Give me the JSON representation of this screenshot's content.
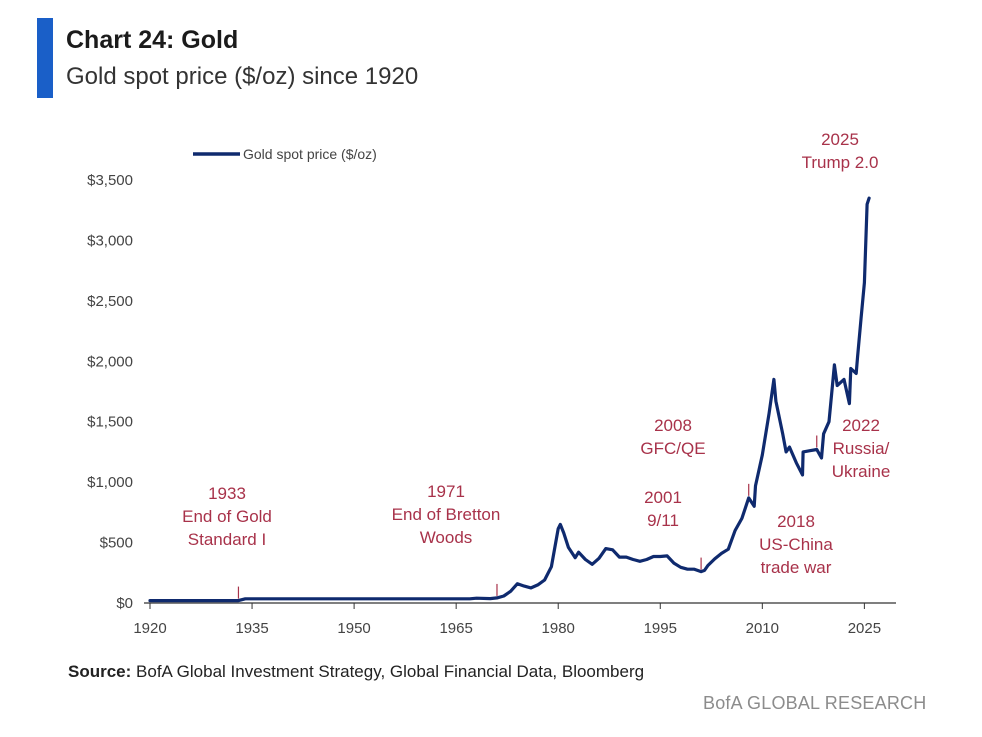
{
  "header": {
    "title": "Chart 24: Gold",
    "subtitle": "Gold spot price ($/oz) since 1920"
  },
  "footer": {
    "source_label": "Source:",
    "source_text": " BofA Global Investment Strategy, Global Financial Data, Bloomberg",
    "brand": "BofA GLOBAL RESEARCH"
  },
  "colors": {
    "accent": "#1a5fc8",
    "line": "#0f2a6e",
    "annotation": "#a8324a"
  },
  "chart_data": {
    "type": "line",
    "title": "Chart 24: Gold",
    "subtitle": "Gold spot price ($/oz) since 1920",
    "legend": {
      "position": "top-left",
      "entries": [
        "Gold spot price ($/oz)"
      ]
    },
    "xlim": [
      1920,
      2032
    ],
    "ylim": [
      0,
      3500
    ],
    "x_ticks": [
      1920,
      1935,
      1950,
      1965,
      1980,
      1995,
      2010,
      2025
    ],
    "y_ticks": [
      {
        "value": 0,
        "label": "$0"
      },
      {
        "value": 500,
        "label": "$500"
      },
      {
        "value": 1000,
        "label": "$1,000"
      },
      {
        "value": 1500,
        "label": "$1,500"
      },
      {
        "value": 2000,
        "label": "$2,000"
      },
      {
        "value": 2500,
        "label": "$2,500"
      },
      {
        "value": 3000,
        "label": "$3,000"
      },
      {
        "value": 3500,
        "label": "$3,500"
      }
    ],
    "series": [
      {
        "name": "Gold spot price ($/oz)",
        "x": [
          1920,
          1933,
          1934,
          1950,
          1967,
          1968,
          1970,
          1971,
          1972,
          1973,
          1974,
          1975,
          1976,
          1977,
          1978,
          1979,
          1980,
          1980.3,
          1980.8,
          1981.5,
          1982.5,
          1983,
          1984,
          1985,
          1986,
          1987,
          1988,
          1989,
          1990,
          1991,
          1992,
          1993,
          1994,
          1995,
          1996,
          1997,
          1998,
          1999,
          2000,
          2001,
          2001.5,
          2002,
          2003,
          2004,
          2005,
          2006,
          2007,
          2008,
          2008.8,
          2009,
          2010,
          2011,
          2011.7,
          2012,
          2013,
          2013.5,
          2014,
          2015,
          2015.9,
          2016,
          2017,
          2018,
          2018.7,
          2019,
          2019.8,
          2020.6,
          2021,
          2022,
          2022.8,
          2023,
          2023.8,
          2024,
          2024.5,
          2025,
          2025.4,
          2025.7
        ],
        "values": [
          20,
          20,
          35,
          35,
          35,
          40,
          36,
          42,
          58,
          97,
          160,
          140,
          125,
          150,
          190,
          300,
          615,
          650,
          580,
          460,
          375,
          420,
          360,
          320,
          370,
          450,
          440,
          380,
          380,
          360,
          345,
          360,
          385,
          385,
          390,
          330,
          295,
          280,
          280,
          260,
          270,
          310,
          365,
          410,
          445,
          600,
          700,
          870,
          800,
          970,
          1225,
          1570,
          1850,
          1670,
          1400,
          1250,
          1290,
          1160,
          1060,
          1250,
          1260,
          1270,
          1200,
          1400,
          1500,
          1970,
          1800,
          1850,
          1650,
          1940,
          1900,
          2040,
          2350,
          2650,
          3300,
          3350
        ]
      }
    ],
    "annotations": [
      {
        "lines": [
          "1933",
          "End of Gold",
          "Standard I"
        ],
        "x": 1933,
        "y": 20
      },
      {
        "lines": [
          "1971",
          "End of Bretton",
          "Woods"
        ],
        "x": 1971,
        "y": 42
      },
      {
        "lines": [
          "2001",
          "9/11"
        ],
        "x": 2001,
        "y": 260
      },
      {
        "lines": [
          "2008",
          "GFC/QE"
        ],
        "x": 2008,
        "y": 870
      },
      {
        "lines": [
          "2018",
          "US-China",
          "trade war"
        ],
        "x": 2018,
        "y": 1270
      },
      {
        "lines": [
          "2022",
          "Russia/",
          "Ukraine"
        ],
        "x": 2022.8,
        "y": 1650
      },
      {
        "lines": [
          "2025",
          "Trump 2.0"
        ],
        "x": 2025.7,
        "y": 3350
      }
    ]
  }
}
